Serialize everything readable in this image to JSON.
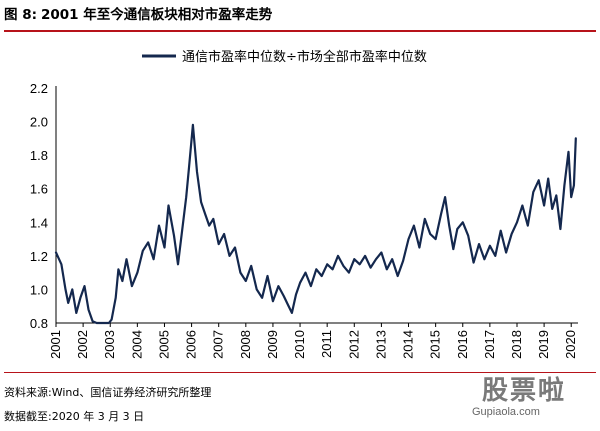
{
  "figure": {
    "label": "图 8:",
    "title": "2001 年至今通信板块相对市盈率走势"
  },
  "footer": {
    "source": "资料来源:Wind、国信证券经济研究所整理",
    "date": "数据截至:2020 年 3 月 3 日"
  },
  "watermark": {
    "text_cn": "股票啦",
    "url": "Gupiaola.com"
  },
  "chart_data": {
    "type": "line",
    "title": "",
    "xlabel": "",
    "ylabel": "",
    "ylim": [
      0.8,
      2.2
    ],
    "yticks": [
      "0.8",
      "1.0",
      "1.2",
      "1.4",
      "1.6",
      "1.8",
      "2.0",
      "2.2"
    ],
    "xlim": [
      2001.0,
      2020.25
    ],
    "xticks": [
      "2001",
      "2002",
      "2003",
      "2004",
      "2005",
      "2006",
      "2007",
      "2008",
      "2009",
      "2010",
      "2011",
      "2012",
      "2013",
      "2014",
      "2015",
      "2016",
      "2017",
      "2018",
      "2019",
      "2020"
    ],
    "grid": false,
    "legend": "top-center",
    "series": [
      {
        "name": "通信市盈率中位数÷市场全部市盈率中位数",
        "color": "#14284e",
        "x": [
          2001.0,
          2001.2,
          2001.35,
          2001.45,
          2001.6,
          2001.75,
          2001.9,
          2002.05,
          2002.2,
          2002.35,
          2002.5,
          2002.6,
          2002.75,
          2002.95,
          2003.05,
          2003.2,
          2003.3,
          2003.45,
          2003.6,
          2003.8,
          2004.0,
          2004.2,
          2004.4,
          2004.6,
          2004.8,
          2005.0,
          2005.15,
          2005.35,
          2005.5,
          2005.65,
          2005.8,
          2005.9,
          2006.05,
          2006.2,
          2006.35,
          2006.5,
          2006.65,
          2006.8,
          2007.0,
          2007.2,
          2007.4,
          2007.6,
          2007.8,
          2008.0,
          2008.2,
          2008.4,
          2008.6,
          2008.8,
          2009.0,
          2009.2,
          2009.4,
          2009.55,
          2009.7,
          2009.85,
          2010.0,
          2010.2,
          2010.4,
          2010.6,
          2010.8,
          2011.0,
          2011.2,
          2011.4,
          2011.6,
          2011.8,
          2012.0,
          2012.2,
          2012.4,
          2012.6,
          2012.8,
          2013.0,
          2013.2,
          2013.4,
          2013.6,
          2013.8,
          2014.0,
          2014.2,
          2014.4,
          2014.6,
          2014.8,
          2015.0,
          2015.2,
          2015.35,
          2015.5,
          2015.65,
          2015.8,
          2016.0,
          2016.2,
          2016.4,
          2016.6,
          2016.8,
          2017.0,
          2017.2,
          2017.4,
          2017.6,
          2017.8,
          2018.0,
          2018.2,
          2018.4,
          2018.6,
          2018.8,
          2019.0,
          2019.15,
          2019.3,
          2019.45,
          2019.6,
          2019.75,
          2019.9,
          2020.0,
          2020.1,
          2020.17
        ],
        "values": [
          1.22,
          1.15,
          1.0,
          0.92,
          1.0,
          0.86,
          0.95,
          1.02,
          0.88,
          0.81,
          0.8,
          0.8,
          0.8,
          0.8,
          0.82,
          0.95,
          1.12,
          1.05,
          1.18,
          1.02,
          1.1,
          1.23,
          1.28,
          1.18,
          1.38,
          1.25,
          1.5,
          1.32,
          1.15,
          1.35,
          1.55,
          1.72,
          1.98,
          1.7,
          1.52,
          1.45,
          1.38,
          1.42,
          1.27,
          1.33,
          1.2,
          1.25,
          1.1,
          1.05,
          1.14,
          1.0,
          0.95,
          1.08,
          0.93,
          1.02,
          0.96,
          0.91,
          0.86,
          0.97,
          1.04,
          1.1,
          1.02,
          1.12,
          1.08,
          1.15,
          1.12,
          1.2,
          1.14,
          1.1,
          1.18,
          1.15,
          1.2,
          1.13,
          1.18,
          1.22,
          1.12,
          1.18,
          1.08,
          1.17,
          1.3,
          1.38,
          1.25,
          1.42,
          1.33,
          1.3,
          1.45,
          1.55,
          1.38,
          1.24,
          1.36,
          1.4,
          1.32,
          1.16,
          1.27,
          1.18,
          1.26,
          1.2,
          1.35,
          1.22,
          1.33,
          1.4,
          1.5,
          1.38,
          1.58,
          1.65,
          1.5,
          1.66,
          1.48,
          1.56,
          1.36,
          1.62,
          1.82,
          1.55,
          1.62,
          1.9
        ]
      }
    ]
  }
}
